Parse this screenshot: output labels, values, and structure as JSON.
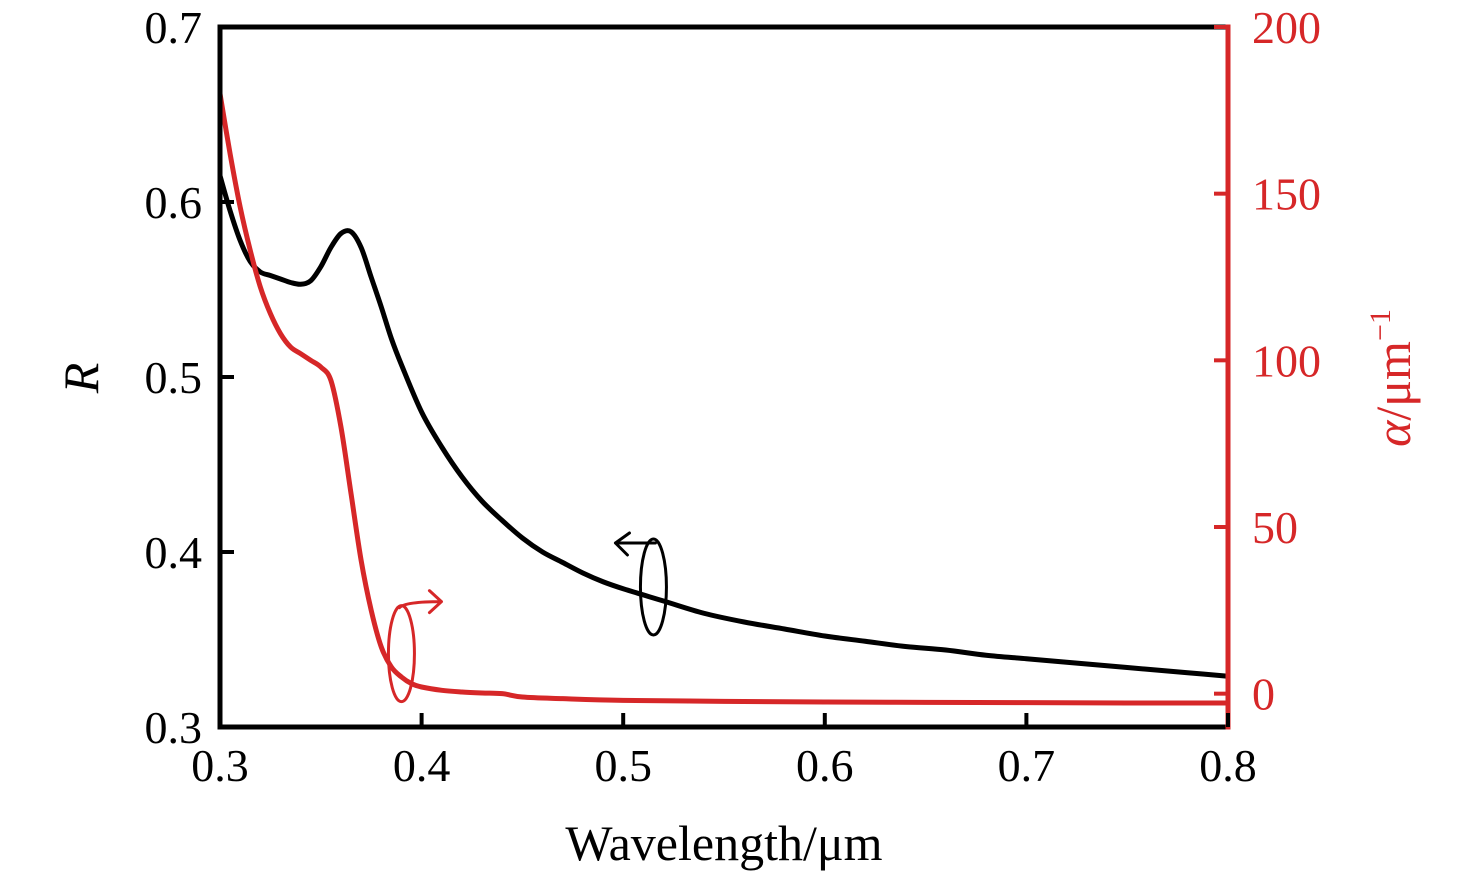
{
  "chart_data": {
    "type": "line",
    "xlabel": "Wavelength/μm",
    "ylabel_left": "R",
    "ylabel_right_symbol": "α",
    "ylabel_right_unit": "/μm",
    "ylabel_right_exponent": "−1",
    "xlim": [
      0.3,
      0.8
    ],
    "ylim_left": [
      0.3,
      0.7
    ],
    "ylim_right": [
      -10,
      200
    ],
    "x_ticks": [
      "0.3",
      "0.4",
      "0.5",
      "0.6",
      "0.7",
      "0.8"
    ],
    "y_left_ticks": [
      "0.3",
      "0.4",
      "0.5",
      "0.6",
      "0.7"
    ],
    "y_right_ticks": [
      "0",
      "50",
      "100",
      "150",
      "200"
    ],
    "grid": false,
    "colors": {
      "left_axis": "#000000",
      "right_axis": "#d62728"
    },
    "series": [
      {
        "axis": "left",
        "color": "#000000",
        "x": [
          0.3,
          0.305,
          0.31,
          0.315,
          0.32,
          0.325,
          0.33,
          0.335,
          0.34,
          0.345,
          0.35,
          0.355,
          0.36,
          0.365,
          0.37,
          0.375,
          0.38,
          0.385,
          0.39,
          0.4,
          0.41,
          0.42,
          0.43,
          0.44,
          0.45,
          0.46,
          0.47,
          0.48,
          0.49,
          0.5,
          0.52,
          0.54,
          0.56,
          0.58,
          0.6,
          0.62,
          0.64,
          0.66,
          0.68,
          0.7,
          0.72,
          0.74,
          0.76,
          0.78,
          0.8
        ],
        "y": [
          0.615,
          0.595,
          0.578,
          0.566,
          0.56,
          0.558,
          0.556,
          0.554,
          0.553,
          0.555,
          0.563,
          0.574,
          0.582,
          0.583,
          0.574,
          0.557,
          0.54,
          0.522,
          0.507,
          0.48,
          0.46,
          0.443,
          0.429,
          0.418,
          0.408,
          0.4,
          0.394,
          0.388,
          0.383,
          0.379,
          0.372,
          0.365,
          0.36,
          0.356,
          0.352,
          0.349,
          0.346,
          0.344,
          0.341,
          0.339,
          0.337,
          0.335,
          0.333,
          0.331,
          0.329
        ]
      },
      {
        "axis": "right",
        "color": "#d62728",
        "x": [
          0.3,
          0.305,
          0.31,
          0.315,
          0.32,
          0.325,
          0.33,
          0.335,
          0.34,
          0.345,
          0.35,
          0.355,
          0.36,
          0.365,
          0.37,
          0.375,
          0.38,
          0.385,
          0.39,
          0.395,
          0.4,
          0.41,
          0.42,
          0.43,
          0.44,
          0.45,
          0.47,
          0.5,
          0.55,
          0.6,
          0.65,
          0.7,
          0.75,
          0.8
        ],
        "y": [
          180,
          162,
          146,
          133,
          122,
          114,
          108,
          104,
          102,
          100,
          98,
          94,
          80,
          60,
          40,
          25,
          14,
          8,
          5,
          3,
          2,
          1,
          0.5,
          0.2,
          0,
          -1,
          -1.5,
          -2,
          -2.3,
          -2.5,
          -2.6,
          -2.7,
          -2.8,
          -2.8
        ]
      }
    ],
    "annotations": [
      {
        "type": "arrow",
        "axis": "left",
        "direction": "left",
        "x": 0.515,
        "y": 0.38
      },
      {
        "type": "arrow",
        "axis": "right",
        "direction": "right",
        "x": 0.39,
        "y": 12
      }
    ]
  }
}
